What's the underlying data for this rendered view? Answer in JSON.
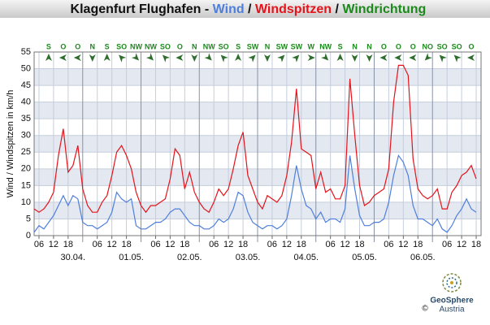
{
  "chart_data": {
    "type": "line",
    "title": "Klagenfurt Flughafen - ",
    "title_color": "#111111",
    "separator": " / ",
    "ylabel": "Wind / Windspitzen in km/h",
    "ylim": [
      0,
      55
    ],
    "yticks": [
      0,
      5,
      10,
      15,
      20,
      25,
      30,
      35,
      40,
      45,
      50,
      55
    ],
    "xlim": [
      4,
      188
    ],
    "grid": true,
    "xticks": [
      {
        "value": 6,
        "label": "06"
      },
      {
        "value": 12,
        "label": "12"
      },
      {
        "value": 18,
        "label": "18"
      },
      {
        "value": 30,
        "label": "06"
      },
      {
        "value": 36,
        "label": "12"
      },
      {
        "value": 42,
        "label": "18"
      },
      {
        "value": 54,
        "label": "06"
      },
      {
        "value": 60,
        "label": "12"
      },
      {
        "value": 66,
        "label": "18"
      },
      {
        "value": 78,
        "label": "06"
      },
      {
        "value": 84,
        "label": "12"
      },
      {
        "value": 90,
        "label": "18"
      },
      {
        "value": 102,
        "label": "06"
      },
      {
        "value": 108,
        "label": "12"
      },
      {
        "value": 114,
        "label": "18"
      },
      {
        "value": 126,
        "label": "06"
      },
      {
        "value": 132,
        "label": "12"
      },
      {
        "value": 138,
        "label": "18"
      },
      {
        "value": 150,
        "label": "06"
      },
      {
        "value": 156,
        "label": "12"
      },
      {
        "value": 162,
        "label": "18"
      },
      {
        "value": 174,
        "label": "06"
      },
      {
        "value": 180,
        "label": "12"
      },
      {
        "value": 186,
        "label": "18"
      }
    ],
    "day_lines": [
      24,
      48,
      72,
      96,
      120,
      144,
      168
    ],
    "day_labels": [
      {
        "value": 20,
        "label": "30.04."
      },
      {
        "value": 44,
        "label": "01.05."
      },
      {
        "value": 68,
        "label": "02.05."
      },
      {
        "value": 92,
        "label": "03.05."
      },
      {
        "value": 116,
        "label": "04.05."
      },
      {
        "value": 140,
        "label": "05.05."
      },
      {
        "value": 164,
        "label": "06.05."
      }
    ],
    "x": [
      4,
      6,
      8,
      10,
      12,
      14,
      16,
      18,
      20,
      22,
      24,
      26,
      28,
      30,
      32,
      34,
      36,
      38,
      40,
      42,
      44,
      46,
      48,
      50,
      52,
      54,
      56,
      58,
      60,
      62,
      64,
      66,
      68,
      70,
      72,
      74,
      76,
      78,
      80,
      82,
      84,
      86,
      88,
      90,
      92,
      94,
      96,
      98,
      100,
      102,
      104,
      106,
      108,
      110,
      112,
      114,
      116,
      118,
      120,
      122,
      124,
      126,
      128,
      130,
      132,
      134,
      136,
      138,
      140,
      142,
      144,
      146,
      148,
      150,
      152,
      154,
      156,
      158,
      160,
      162,
      164,
      166,
      168,
      170,
      172,
      174,
      176,
      178,
      180,
      182,
      184,
      186
    ],
    "series": [
      {
        "name": "Wind",
        "color": "#4f7fdc",
        "values": [
          1,
          3,
          2,
          4,
          6,
          9,
          12,
          9,
          12,
          11,
          4,
          3,
          3,
          2,
          3,
          4,
          7,
          13,
          11,
          10,
          11,
          3,
          2,
          2,
          3,
          4,
          4,
          5,
          7,
          8,
          8,
          6,
          4,
          3,
          3,
          2,
          2,
          3,
          5,
          4,
          5,
          8,
          13,
          12,
          7,
          4,
          3,
          2,
          3,
          3,
          2,
          3,
          5,
          12,
          21,
          14,
          9,
          8,
          5,
          7,
          4,
          5,
          5,
          4,
          8,
          24,
          14,
          6,
          3,
          3,
          4,
          4,
          5,
          10,
          18,
          24,
          22,
          18,
          9,
          5,
          5,
          4,
          3,
          5,
          2,
          1,
          3,
          6,
          8,
          11,
          8,
          7
        ]
      },
      {
        "name": "Windspitzen",
        "color": "#e3141b",
        "values": [
          8,
          7,
          8,
          10,
          13,
          24,
          32,
          19,
          21,
          27,
          14,
          9,
          7,
          7,
          10,
          12,
          18,
          25,
          27,
          24,
          20,
          13,
          9,
          7,
          9,
          9,
          10,
          11,
          17,
          26,
          24,
          14,
          19,
          13,
          10,
          8,
          7,
          10,
          14,
          12,
          14,
          20,
          27,
          31,
          18,
          14,
          10,
          8,
          12,
          11,
          10,
          12,
          18,
          28,
          44,
          26,
          25,
          24,
          14,
          19,
          13,
          14,
          11,
          11,
          15,
          47,
          30,
          15,
          9,
          10,
          12,
          13,
          14,
          20,
          40,
          51,
          51,
          48,
          23,
          14,
          12,
          11,
          12,
          14,
          8,
          8,
          13,
          15,
          18,
          19,
          21,
          17
        ]
      }
    ],
    "directions": {
      "name": "Windrichtung",
      "color": "#1a8a1a",
      "arrow_color": "#2d6e2d",
      "start": 10,
      "step": 6,
      "items": [
        {
          "label": "S",
          "deg": 180
        },
        {
          "label": "O",
          "deg": 90
        },
        {
          "label": "O",
          "deg": 90
        },
        {
          "label": "N",
          "deg": 0
        },
        {
          "label": "S",
          "deg": 180
        },
        {
          "label": "SO",
          "deg": 135
        },
        {
          "label": "NW",
          "deg": 315
        },
        {
          "label": "NW",
          "deg": 315
        },
        {
          "label": "SO",
          "deg": 135
        },
        {
          "label": "O",
          "deg": 90
        },
        {
          "label": "N",
          "deg": 0
        },
        {
          "label": "NW",
          "deg": 315
        },
        {
          "label": "SO",
          "deg": 135
        },
        {
          "label": "S",
          "deg": 180
        },
        {
          "label": "SW",
          "deg": 225
        },
        {
          "label": "N",
          "deg": 0
        },
        {
          "label": "SW",
          "deg": 225
        },
        {
          "label": "SW",
          "deg": 225
        },
        {
          "label": "W",
          "deg": 270
        },
        {
          "label": "NW",
          "deg": 315
        },
        {
          "label": "S",
          "deg": 180
        },
        {
          "label": "N",
          "deg": 0
        },
        {
          "label": "N",
          "deg": 0
        },
        {
          "label": "O",
          "deg": 90
        },
        {
          "label": "O",
          "deg": 90
        },
        {
          "label": "O",
          "deg": 90
        },
        {
          "label": "NO",
          "deg": 45
        },
        {
          "label": "SO",
          "deg": 135
        },
        {
          "label": "SO",
          "deg": 135
        },
        {
          "label": "O",
          "deg": 90
        }
      ]
    },
    "logo": {
      "name": "GeoSphere",
      "sub": "Austria",
      "copyright": "©"
    }
  }
}
